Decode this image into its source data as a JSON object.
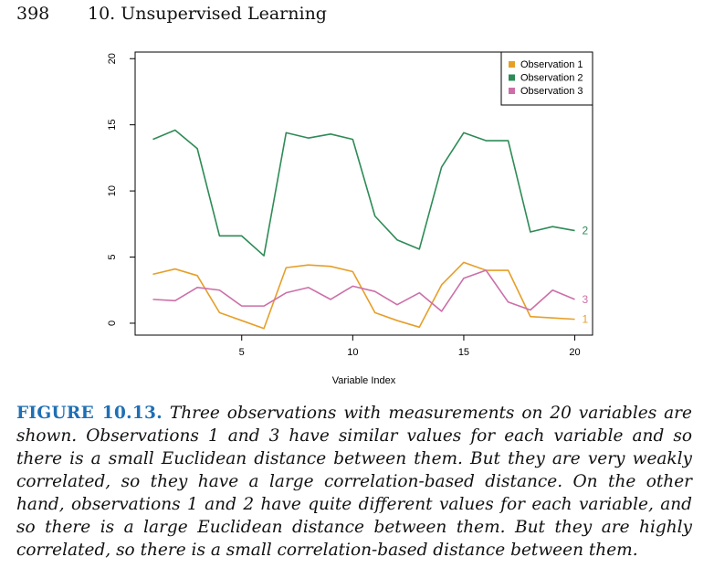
{
  "header": {
    "page_number": "398",
    "chapter": "10.  Unsupervised Learning"
  },
  "caption": {
    "label": "FIGURE 10.13.",
    "text": "Three observations with measurements on 20 variables are shown. Observations 1 and 3 have similar values for each variable and so there is a small Euclidean distance between them. But they are very weakly correlated, so they have a large correlation-based distance. On the other hand, observations 1 and 2 have quite different values for each variable, and so there is a large Euclidean distance between them. But they are highly correlated, so there is a small correlation-based distance between them."
  },
  "chart_data": {
    "type": "line",
    "xlabel": "Variable Index",
    "ylabel": "",
    "xlim": [
      0.2,
      20.8
    ],
    "ylim": [
      -0.9,
      20.5
    ],
    "xticks": [
      5,
      10,
      15,
      20
    ],
    "yticks": [
      0,
      5,
      10,
      15,
      20
    ],
    "grid": false,
    "legend_position": "top-right",
    "x": [
      1,
      2,
      3,
      4,
      5,
      6,
      7,
      8,
      9,
      10,
      11,
      12,
      13,
      14,
      15,
      16,
      17,
      18,
      19,
      20
    ],
    "series": [
      {
        "name": "Observation 1",
        "end_label": "1",
        "color": "#e69f28",
        "values": [
          3.7,
          4.1,
          3.6,
          0.8,
          0.2,
          -0.4,
          4.2,
          4.4,
          4.3,
          3.9,
          0.8,
          0.2,
          -0.3,
          2.9,
          4.6,
          4.0,
          4.0,
          0.5,
          0.4,
          0.3
        ]
      },
      {
        "name": "Observation 2",
        "end_label": "2",
        "color": "#2e8b57",
        "values": [
          13.9,
          14.6,
          13.2,
          6.6,
          6.6,
          5.1,
          14.4,
          14.0,
          14.3,
          13.9,
          8.1,
          6.3,
          5.6,
          11.8,
          14.4,
          13.8,
          13.8,
          6.9,
          7.3,
          7.0
        ]
      },
      {
        "name": "Observation 3",
        "end_label": "3",
        "color": "#cc6fa8",
        "values": [
          1.8,
          1.7,
          2.7,
          2.5,
          1.3,
          1.3,
          2.3,
          2.7,
          1.8,
          2.8,
          2.4,
          1.4,
          2.3,
          0.9,
          3.4,
          4.0,
          1.6,
          1.0,
          2.5,
          1.8
        ]
      }
    ]
  }
}
